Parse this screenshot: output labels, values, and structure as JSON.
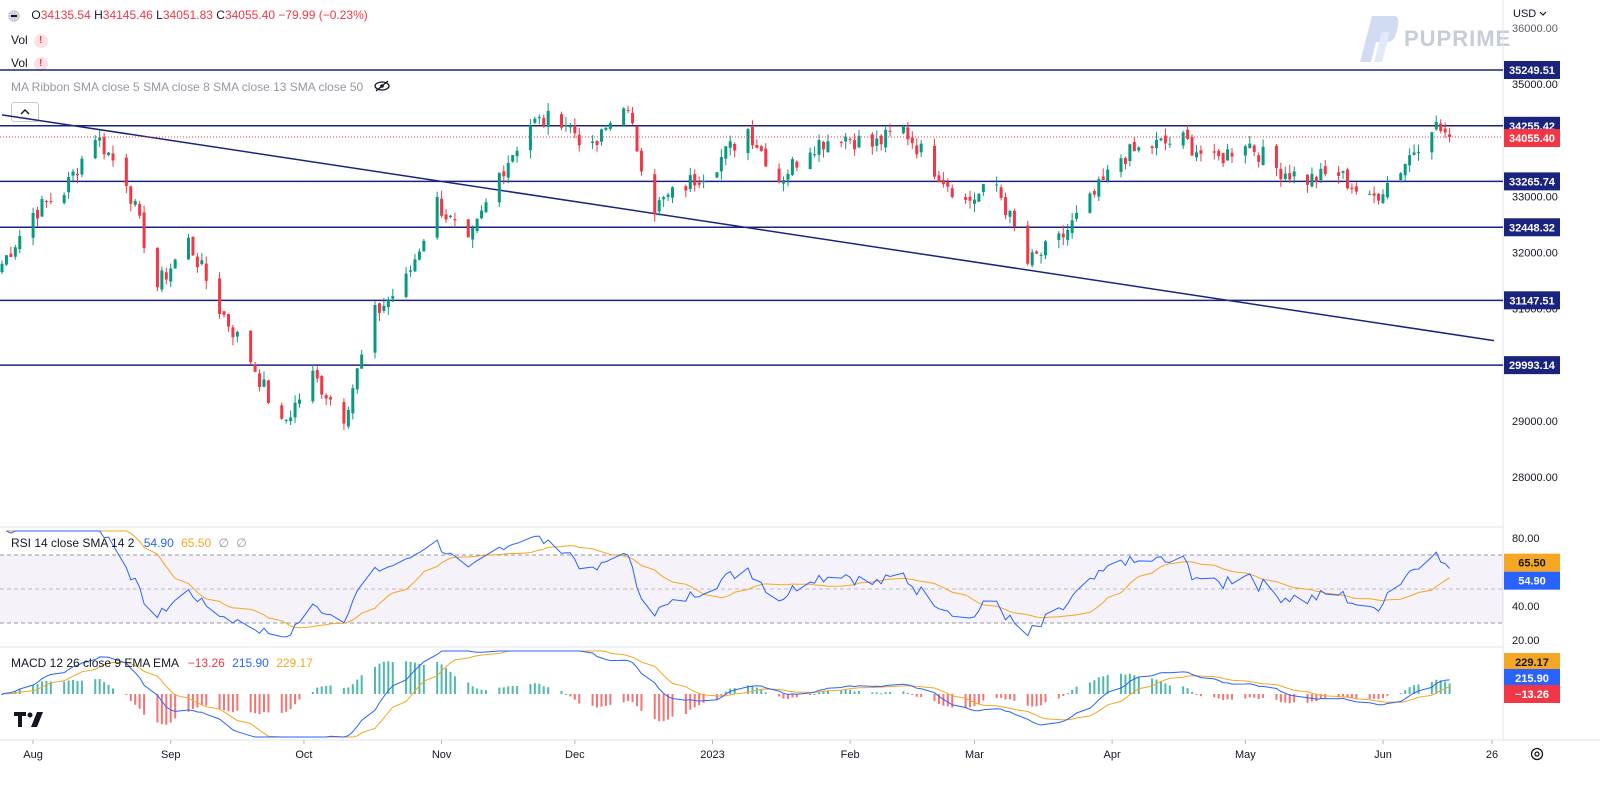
{
  "header": {
    "ohlc": {
      "o_label": "O",
      "o": "34135.54",
      "h_label": "H",
      "h": "34145.46",
      "l_label": "L",
      "l": "34051.83",
      "c_label": "C",
      "c": "34055.40",
      "change": "−79.99 (−0.23%)"
    },
    "vol1": "Vol",
    "vol2": "Vol",
    "ma_ribbon": "MA Ribbon SMA close 5 SMA close 8 SMA close 13 SMA close 50",
    "hidden_icon": "eye-crossed-icon",
    "warning_icon": "exclamation-icon",
    "collapse_icon": "chevron-up-icon"
  },
  "currency": "USD",
  "currency_icon": "chevron-down-icon",
  "logo": "PUPRIME",
  "colors": {
    "up": "#089981",
    "down": "#f23645",
    "level": "#1a237e",
    "rsi": "#2962ff",
    "rsi_ma": "#f5a623",
    "macd": "#2962ff",
    "signal": "#f5a623"
  },
  "price_axis": {
    "ticks": [
      "35000.00",
      "34000.00",
      "33000.00",
      "32000.00",
      "31000.00",
      "29000.00",
      "28000.00"
    ]
  },
  "time_axis": {
    "labels": [
      "Aug",
      "Sep",
      "Oct",
      "Nov",
      "Dec",
      "2023",
      "Feb",
      "Mar",
      "Apr",
      "May",
      "Jun",
      "26"
    ]
  },
  "levels": [
    {
      "value": "35249.51"
    },
    {
      "value": "34255.42"
    },
    {
      "value": "33265.74"
    },
    {
      "value": "32448.32"
    },
    {
      "value": "31147.51"
    },
    {
      "value": "29993.14"
    }
  ],
  "current_price": "34055.40",
  "rsi": {
    "title": "RSI 14 close SMA 14 2",
    "rsi_val": "54.90",
    "ma_val": "65.50",
    "extra1": "∅",
    "extra2": "∅",
    "ticks": [
      "80.00",
      "40.00",
      "20.00"
    ]
  },
  "macd": {
    "title": "MACD 12 26 close 9 EMA EMA",
    "hist": "−13.26",
    "macd_val": "215.90",
    "signal_val": "229.17"
  },
  "bottom": {
    "tv_logo": "tradingview-logo-icon",
    "settings_icon": "gear-icon"
  },
  "chart_data": {
    "type": "candlestick",
    "y_range": [
      27500,
      35800
    ],
    "close_path": [
      {
        "date": "2022-07-25",
        "close": 31800
      },
      {
        "date": "2022-08-01",
        "close": 32700
      },
      {
        "date": "2022-08-08",
        "close": 33100
      },
      {
        "date": "2022-08-15",
        "close": 34100
      },
      {
        "date": "2022-08-22",
        "close": 33300
      },
      {
        "date": "2022-08-29",
        "close": 31400
      },
      {
        "date": "2022-09-05",
        "close": 32200
      },
      {
        "date": "2022-09-12",
        "close": 31000
      },
      {
        "date": "2022-09-19",
        "close": 30100
      },
      {
        "date": "2022-09-26",
        "close": 28900
      },
      {
        "date": "2022-10-03",
        "close": 29800
      },
      {
        "date": "2022-10-10",
        "close": 29100
      },
      {
        "date": "2022-10-17",
        "close": 30900
      },
      {
        "date": "2022-10-24",
        "close": 31500
      },
      {
        "date": "2022-10-31",
        "close": 32900
      },
      {
        "date": "2022-11-07",
        "close": 32100
      },
      {
        "date": "2022-11-14",
        "close": 33400
      },
      {
        "date": "2022-11-21",
        "close": 34300
      },
      {
        "date": "2022-11-28",
        "close": 34400
      },
      {
        "date": "2022-12-05",
        "close": 33800
      },
      {
        "date": "2022-12-12",
        "close": 34700
      },
      {
        "date": "2022-12-19",
        "close": 32800
      },
      {
        "date": "2022-12-26",
        "close": 33200
      },
      {
        "date": "2023-01-02",
        "close": 33600
      },
      {
        "date": "2023-01-09",
        "close": 34200
      },
      {
        "date": "2023-01-16",
        "close": 33300
      },
      {
        "date": "2023-01-23",
        "close": 33900
      },
      {
        "date": "2023-01-30",
        "close": 34100
      },
      {
        "date": "2023-02-06",
        "close": 33900
      },
      {
        "date": "2023-02-13",
        "close": 34200
      },
      {
        "date": "2023-02-20",
        "close": 33500
      },
      {
        "date": "2023-02-27",
        "close": 32900
      },
      {
        "date": "2023-03-06",
        "close": 33200
      },
      {
        "date": "2023-03-13",
        "close": 31800
      },
      {
        "date": "2023-03-20",
        "close": 32200
      },
      {
        "date": "2023-03-27",
        "close": 32900
      },
      {
        "date": "2023-04-03",
        "close": 33700
      },
      {
        "date": "2023-04-10",
        "close": 33900
      },
      {
        "date": "2023-04-17",
        "close": 34000
      },
      {
        "date": "2023-04-24",
        "close": 33600
      },
      {
        "date": "2023-05-01",
        "close": 34000
      },
      {
        "date": "2023-05-08",
        "close": 33500
      },
      {
        "date": "2023-05-15",
        "close": 33300
      },
      {
        "date": "2023-05-22",
        "close": 33400
      },
      {
        "date": "2023-05-29",
        "close": 32900
      },
      {
        "date": "2023-06-05",
        "close": 33500
      },
      {
        "date": "2023-06-12",
        "close": 34300
      },
      {
        "date": "2023-06-16",
        "close": 34055.4
      }
    ],
    "trendline": [
      {
        "date": "2022-07-25",
        "price": 34450
      },
      {
        "date": "2023-06-26",
        "price": 30430
      }
    ],
    "horizontal_levels": [
      35249.51,
      34255.42,
      33265.74,
      32448.32,
      31147.51,
      29993.14
    ]
  }
}
